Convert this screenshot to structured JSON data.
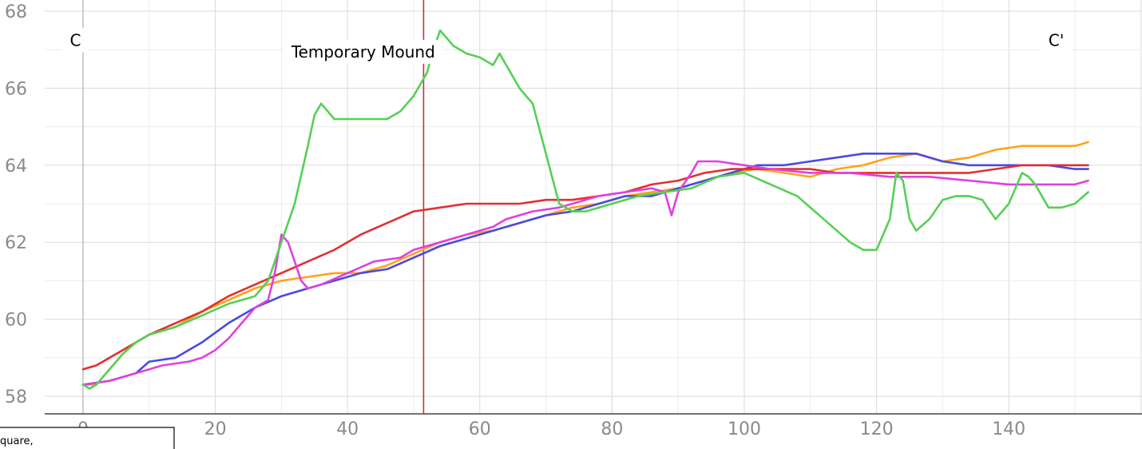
{
  "chart_data": {
    "type": "line",
    "xlim": [
      -6,
      155
    ],
    "ylim": [
      57.5,
      68
    ],
    "grid": true,
    "xticks": [
      0,
      20,
      40,
      60,
      80,
      100,
      120,
      140
    ],
    "yticks": [
      58,
      60,
      62,
      64,
      66,
      68
    ],
    "title": "",
    "xlabel": "",
    "ylabel": "",
    "marker_x": 51.5,
    "marker_color": "#c8323c",
    "annotations": [
      {
        "name": "c-label",
        "text": "C",
        "x": -2,
        "y": 67.1
      },
      {
        "name": "c-prime-label",
        "text": "C'",
        "x": 146,
        "y": 67.1
      },
      {
        "name": "temporary-mound-label",
        "text": "Temporary Mound",
        "x": 31.5,
        "y": 66.8
      }
    ],
    "partial_box_text": "quare,",
    "series": [
      {
        "color": "#ffa31a",
        "points": [
          [
            0,
            58.3
          ],
          [
            2,
            58.3
          ],
          [
            4,
            58.7
          ],
          [
            6,
            59.1
          ],
          [
            8,
            59.4
          ],
          [
            10,
            59.6
          ],
          [
            14,
            59.8
          ],
          [
            18,
            60.2
          ],
          [
            22,
            60.5
          ],
          [
            26,
            60.8
          ],
          [
            30,
            61.0
          ],
          [
            34,
            61.1
          ],
          [
            38,
            61.2
          ],
          [
            42,
            61.2
          ],
          [
            46,
            61.4
          ],
          [
            50,
            61.7
          ],
          [
            54,
            62.0
          ],
          [
            58,
            62.2
          ],
          [
            62,
            62.3
          ],
          [
            66,
            62.5
          ],
          [
            70,
            62.7
          ],
          [
            74,
            62.9
          ],
          [
            78,
            63.0
          ],
          [
            82,
            63.2
          ],
          [
            86,
            63.3
          ],
          [
            90,
            63.4
          ],
          [
            94,
            63.6
          ],
          [
            98,
            63.8
          ],
          [
            102,
            63.9
          ],
          [
            106,
            63.8
          ],
          [
            110,
            63.7
          ],
          [
            114,
            63.9
          ],
          [
            118,
            64.0
          ],
          [
            122,
            64.2
          ],
          [
            126,
            64.3
          ],
          [
            130,
            64.1
          ],
          [
            134,
            64.2
          ],
          [
            138,
            64.4
          ],
          [
            142,
            64.5
          ],
          [
            146,
            64.5
          ],
          [
            150,
            64.5
          ],
          [
            152,
            64.6
          ]
        ]
      },
      {
        "color": "#4a4ae0",
        "points": [
          [
            0,
            58.3
          ],
          [
            4,
            58.4
          ],
          [
            8,
            58.6
          ],
          [
            10,
            58.9
          ],
          [
            14,
            59.0
          ],
          [
            18,
            59.4
          ],
          [
            22,
            59.9
          ],
          [
            26,
            60.3
          ],
          [
            30,
            60.6
          ],
          [
            34,
            60.8
          ],
          [
            38,
            61.0
          ],
          [
            42,
            61.2
          ],
          [
            46,
            61.3
          ],
          [
            50,
            61.6
          ],
          [
            54,
            61.9
          ],
          [
            58,
            62.1
          ],
          [
            62,
            62.3
          ],
          [
            66,
            62.5
          ],
          [
            70,
            62.7
          ],
          [
            74,
            62.8
          ],
          [
            78,
            63.0
          ],
          [
            82,
            63.2
          ],
          [
            86,
            63.2
          ],
          [
            90,
            63.4
          ],
          [
            94,
            63.6
          ],
          [
            98,
            63.8
          ],
          [
            102,
            64.0
          ],
          [
            106,
            64.0
          ],
          [
            110,
            64.1
          ],
          [
            114,
            64.2
          ],
          [
            118,
            64.3
          ],
          [
            122,
            64.3
          ],
          [
            126,
            64.3
          ],
          [
            130,
            64.1
          ],
          [
            134,
            64.0
          ],
          [
            138,
            64.0
          ],
          [
            142,
            64.0
          ],
          [
            146,
            64.0
          ],
          [
            150,
            63.9
          ],
          [
            152,
            63.9
          ]
        ]
      },
      {
        "color": "#e03030",
        "points": [
          [
            0,
            58.7
          ],
          [
            2,
            58.8
          ],
          [
            6,
            59.2
          ],
          [
            10,
            59.6
          ],
          [
            14,
            59.9
          ],
          [
            18,
            60.2
          ],
          [
            22,
            60.6
          ],
          [
            26,
            60.9
          ],
          [
            30,
            61.2
          ],
          [
            34,
            61.5
          ],
          [
            38,
            61.8
          ],
          [
            42,
            62.2
          ],
          [
            46,
            62.5
          ],
          [
            50,
            62.8
          ],
          [
            54,
            62.9
          ],
          [
            58,
            63.0
          ],
          [
            62,
            63.0
          ],
          [
            66,
            63.0
          ],
          [
            70,
            63.1
          ],
          [
            74,
            63.1
          ],
          [
            78,
            63.2
          ],
          [
            82,
            63.3
          ],
          [
            86,
            63.5
          ],
          [
            90,
            63.6
          ],
          [
            94,
            63.8
          ],
          [
            98,
            63.9
          ],
          [
            102,
            63.9
          ],
          [
            106,
            63.9
          ],
          [
            110,
            63.9
          ],
          [
            114,
            63.8
          ],
          [
            118,
            63.8
          ],
          [
            122,
            63.8
          ],
          [
            126,
            63.8
          ],
          [
            130,
            63.8
          ],
          [
            134,
            63.8
          ],
          [
            138,
            63.9
          ],
          [
            142,
            64.0
          ],
          [
            146,
            64.0
          ],
          [
            150,
            64.0
          ],
          [
            152,
            64.0
          ]
        ]
      },
      {
        "color": "#e040e0",
        "points": [
          [
            0,
            58.3
          ],
          [
            4,
            58.4
          ],
          [
            8,
            58.6
          ],
          [
            12,
            58.8
          ],
          [
            16,
            58.9
          ],
          [
            18,
            59.0
          ],
          [
            20,
            59.2
          ],
          [
            22,
            59.5
          ],
          [
            24,
            59.9
          ],
          [
            26,
            60.3
          ],
          [
            28,
            60.5
          ],
          [
            29,
            61.2
          ],
          [
            30,
            62.2
          ],
          [
            31,
            62.0
          ],
          [
            32,
            61.5
          ],
          [
            33,
            61.0
          ],
          [
            34,
            60.8
          ],
          [
            36,
            60.9
          ],
          [
            40,
            61.2
          ],
          [
            44,
            61.5
          ],
          [
            48,
            61.6
          ],
          [
            50,
            61.8
          ],
          [
            54,
            62.0
          ],
          [
            58,
            62.2
          ],
          [
            62,
            62.4
          ],
          [
            64,
            62.6
          ],
          [
            68,
            62.8
          ],
          [
            72,
            62.9
          ],
          [
            74,
            63.0
          ],
          [
            78,
            63.2
          ],
          [
            82,
            63.3
          ],
          [
            86,
            63.4
          ],
          [
            88,
            63.3
          ],
          [
            89,
            62.7
          ],
          [
            90,
            63.3
          ],
          [
            92,
            63.8
          ],
          [
            93,
            64.1
          ],
          [
            96,
            64.1
          ],
          [
            100,
            64.0
          ],
          [
            104,
            63.9
          ],
          [
            110,
            63.8
          ],
          [
            116,
            63.8
          ],
          [
            122,
            63.7
          ],
          [
            128,
            63.7
          ],
          [
            134,
            63.6
          ],
          [
            140,
            63.5
          ],
          [
            146,
            63.5
          ],
          [
            150,
            63.5
          ],
          [
            152,
            63.6
          ]
        ]
      },
      {
        "color": "#55d055",
        "points": [
          [
            0,
            58.3
          ],
          [
            1,
            58.2
          ],
          [
            2,
            58.3
          ],
          [
            4,
            58.7
          ],
          [
            6,
            59.1
          ],
          [
            8,
            59.4
          ],
          [
            10,
            59.6
          ],
          [
            14,
            59.8
          ],
          [
            18,
            60.1
          ],
          [
            22,
            60.4
          ],
          [
            26,
            60.6
          ],
          [
            28,
            61.0
          ],
          [
            30,
            62.0
          ],
          [
            32,
            63.0
          ],
          [
            34,
            64.5
          ],
          [
            35,
            65.3
          ],
          [
            36,
            65.6
          ],
          [
            37,
            65.4
          ],
          [
            38,
            65.2
          ],
          [
            42,
            65.2
          ],
          [
            44,
            65.2
          ],
          [
            46,
            65.2
          ],
          [
            48,
            65.4
          ],
          [
            50,
            65.8
          ],
          [
            52,
            66.4
          ],
          [
            53,
            67.0
          ],
          [
            54,
            67.5
          ],
          [
            55,
            67.3
          ],
          [
            56,
            67.1
          ],
          [
            58,
            66.9
          ],
          [
            60,
            66.8
          ],
          [
            62,
            66.6
          ],
          [
            63,
            66.9
          ],
          [
            64,
            66.6
          ],
          [
            66,
            66.0
          ],
          [
            68,
            65.6
          ],
          [
            70,
            64.3
          ],
          [
            72,
            63.0
          ],
          [
            74,
            62.8
          ],
          [
            76,
            62.8
          ],
          [
            80,
            63.0
          ],
          [
            84,
            63.2
          ],
          [
            88,
            63.3
          ],
          [
            92,
            63.4
          ],
          [
            96,
            63.7
          ],
          [
            100,
            63.8
          ],
          [
            104,
            63.5
          ],
          [
            108,
            63.2
          ],
          [
            112,
            62.6
          ],
          [
            116,
            62.0
          ],
          [
            118,
            61.8
          ],
          [
            120,
            61.8
          ],
          [
            122,
            62.6
          ],
          [
            123,
            63.8
          ],
          [
            124,
            63.6
          ],
          [
            125,
            62.6
          ],
          [
            126,
            62.3
          ],
          [
            128,
            62.6
          ],
          [
            130,
            63.1
          ],
          [
            132,
            63.2
          ],
          [
            134,
            63.2
          ],
          [
            136,
            63.1
          ],
          [
            138,
            62.6
          ],
          [
            140,
            63.0
          ],
          [
            142,
            63.8
          ],
          [
            143,
            63.7
          ],
          [
            144,
            63.5
          ],
          [
            146,
            62.9
          ],
          [
            148,
            62.9
          ],
          [
            150,
            63.0
          ],
          [
            152,
            63.3
          ]
        ]
      }
    ]
  }
}
